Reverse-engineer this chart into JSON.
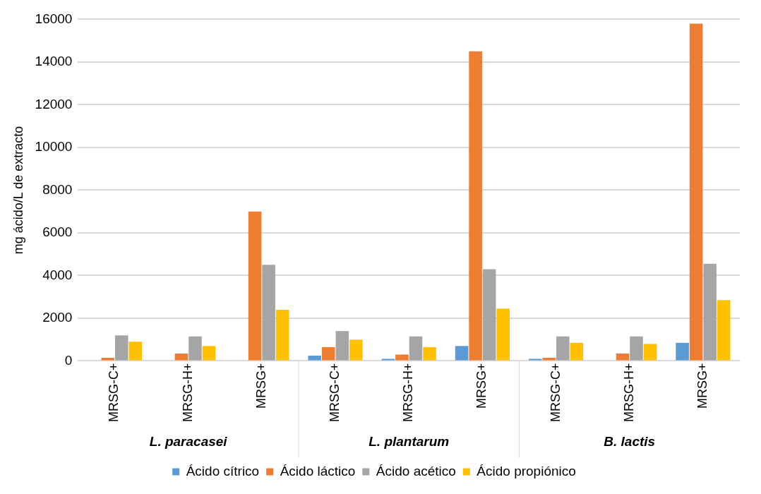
{
  "chart_data": {
    "type": "bar",
    "ylabel": "mg ácido/L de extracto",
    "categories": [
      "MRSG-C+",
      "MRSG-H+",
      "MRSG+",
      "MRSG-C+",
      "MRSG-H+",
      "MRSG+",
      "MRSG-C+",
      "MRSG-H+",
      "MRSG+"
    ],
    "series": [
      {
        "name": "Ácido cítrico",
        "color": "#5b9bd5",
        "values": [
          null,
          null,
          null,
          250,
          100,
          700,
          100,
          null,
          850
        ]
      },
      {
        "name": "Ácido láctico",
        "color": "#ed7d31",
        "values": [
          150,
          350,
          7000,
          650,
          300,
          14500,
          150,
          350,
          15800
        ]
      },
      {
        "name": "Ácido acético",
        "color": "#a5a5a5",
        "values": [
          1200,
          1150,
          4500,
          1400,
          1150,
          4300,
          1150,
          1150,
          4550
        ]
      },
      {
        "name": "Ácido propiónico",
        "color": "#ffc000",
        "values": [
          900,
          700,
          2400,
          1000,
          650,
          2450,
          850,
          800,
          2850
        ]
      }
    ],
    "ylim": [
      0,
      16000
    ],
    "yticks": [
      0,
      2000,
      4000,
      6000,
      8000,
      10000,
      12000,
      14000,
      16000
    ],
    "grid": "y",
    "legend": "bottom",
    "annotations": [
      "L. paracasei",
      "L. plantarum",
      "B. lactis"
    ]
  }
}
